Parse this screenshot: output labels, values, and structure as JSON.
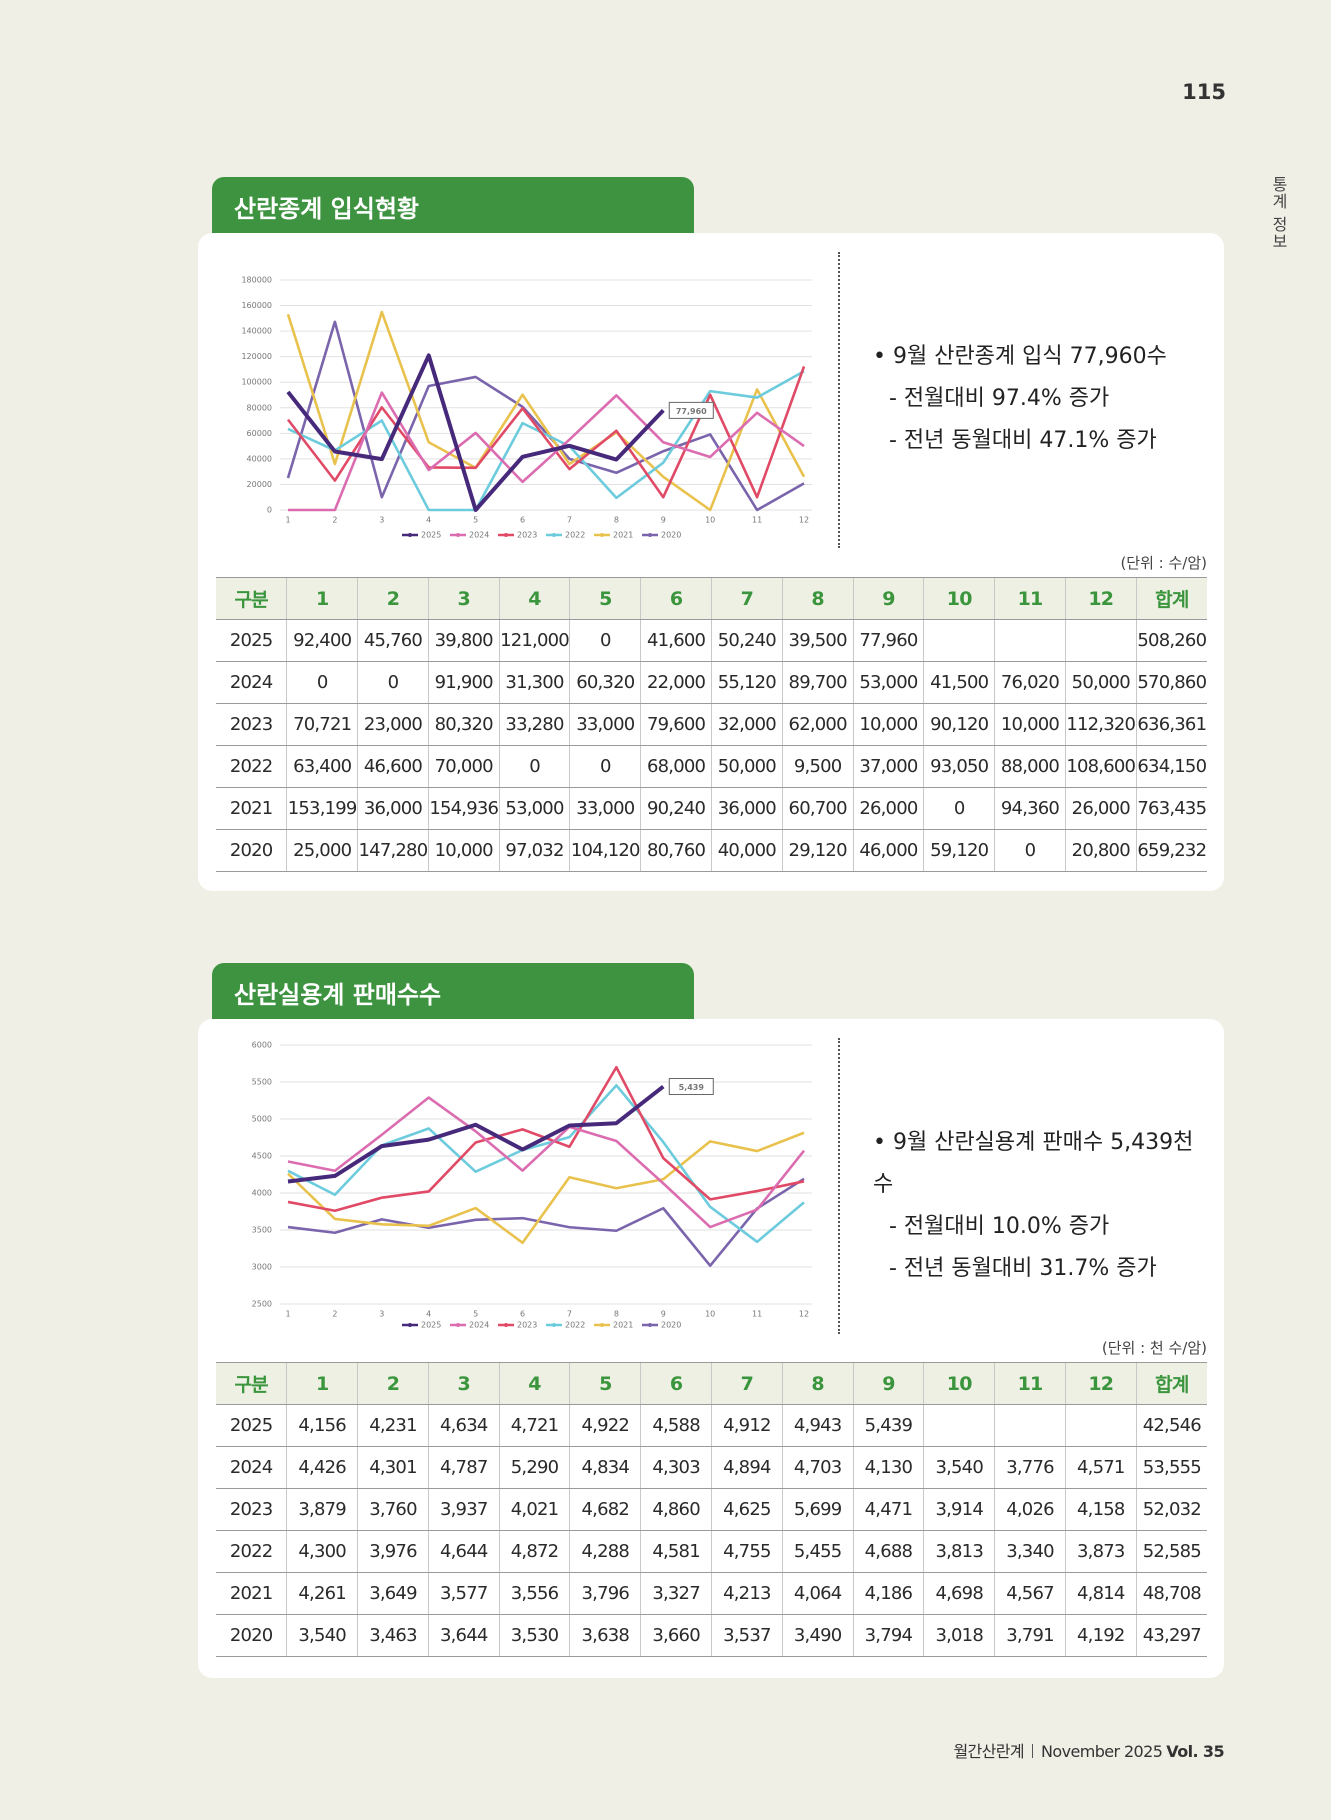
{
  "page_number": "115",
  "side_label": "통계 정보",
  "footer": {
    "magazine": "월간산란계",
    "issue": "November 2025",
    "volume": "Vol. 35"
  },
  "sections": [
    {
      "title": "산란종계 입식현황",
      "bullets": [
        "• 9월 산란종계 입식 77,960수",
        "- 전월대비 97.4% 증가",
        "- 전년 동월대비 47.1% 증가"
      ],
      "unit": "(단위 : 수/암)",
      "table": {
        "header": [
          "구분",
          "1",
          "2",
          "3",
          "4",
          "5",
          "6",
          "7",
          "8",
          "9",
          "10",
          "11",
          "12",
          "합계"
        ],
        "rows": [
          [
            "2025",
            "92,400",
            "45,760",
            "39,800",
            "121,000",
            "0",
            "41,600",
            "50,240",
            "39,500",
            "77,960",
            null,
            null,
            null,
            "508,260"
          ],
          [
            "2024",
            "0",
            "0",
            "91,900",
            "31,300",
            "60,320",
            "22,000",
            "55,120",
            "89,700",
            "53,000",
            "41,500",
            "76,020",
            "50,000",
            "570,860"
          ],
          [
            "2023",
            "70,721",
            "23,000",
            "80,320",
            "33,280",
            "33,000",
            "79,600",
            "32,000",
            "62,000",
            "10,000",
            "90,120",
            "10,000",
            "112,320",
            "636,361"
          ],
          [
            "2022",
            "63,400",
            "46,600",
            "70,000",
            "0",
            "0",
            "68,000",
            "50,000",
            "9,500",
            "37,000",
            "93,050",
            "88,000",
            "108,600",
            "634,150"
          ],
          [
            "2021",
            "153,199",
            "36,000",
            "154,936",
            "53,000",
            "33,000",
            "90,240",
            "36,000",
            "60,700",
            "26,000",
            "0",
            "94,360",
            "26,000",
            "763,435"
          ],
          [
            "2020",
            "25,000",
            "147,280",
            "10,000",
            "97,032",
            "104,120",
            "80,760",
            "40,000",
            "29,120",
            "46,000",
            "59,120",
            "0",
            "20,800",
            "659,232"
          ]
        ]
      }
    },
    {
      "title": "산란실용계 판매수수",
      "bullets": [
        "• 9월 산란실용계 판매수 5,439천수",
        "- 전월대비 10.0% 증가",
        "- 전년 동월대비 31.7% 증가"
      ],
      "unit": "(단위 : 천 수/암)",
      "table": {
        "header": [
          "구분",
          "1",
          "2",
          "3",
          "4",
          "5",
          "6",
          "7",
          "8",
          "9",
          "10",
          "11",
          "12",
          "합계"
        ],
        "rows": [
          [
            "2025",
            "4,156",
            "4,231",
            "4,634",
            "4,721",
            "4,922",
            "4,588",
            "4,912",
            "4,943",
            "5,439",
            null,
            null,
            null,
            "42,546"
          ],
          [
            "2024",
            "4,426",
            "4,301",
            "4,787",
            "5,290",
            "4,834",
            "4,303",
            "4,894",
            "4,703",
            "4,130",
            "3,540",
            "3,776",
            "4,571",
            "53,555"
          ],
          [
            "2023",
            "3,879",
            "3,760",
            "3,937",
            "4,021",
            "4,682",
            "4,860",
            "4,625",
            "5,699",
            "4,471",
            "3,914",
            "4,026",
            "4,158",
            "52,032"
          ],
          [
            "2022",
            "4,300",
            "3,976",
            "4,644",
            "4,872",
            "4,288",
            "4,581",
            "4,755",
            "5,455",
            "4,688",
            "3,813",
            "3,340",
            "3,873",
            "52,585"
          ],
          [
            "2021",
            "4,261",
            "3,649",
            "3,577",
            "3,556",
            "3,796",
            "3,327",
            "4,213",
            "4,064",
            "4,186",
            "4,698",
            "4,567",
            "4,814",
            "48,708"
          ],
          [
            "2020",
            "3,540",
            "3,463",
            "3,644",
            "3,530",
            "3,638",
            "3,660",
            "3,537",
            "3,490",
            "3,794",
            "3,018",
            "3,791",
            "4,192",
            "43,297"
          ]
        ]
      }
    }
  ],
  "chart_data": [
    {
      "type": "line",
      "categories": [
        "1",
        "2",
        "3",
        "4",
        "5",
        "6",
        "7",
        "8",
        "9",
        "10",
        "11",
        "12"
      ],
      "ylim": [
        0,
        180000
      ],
      "yticks": [
        0,
        20000,
        40000,
        60000,
        80000,
        100000,
        120000,
        140000,
        160000,
        180000
      ],
      "grid": true,
      "legend": "bottom",
      "series": [
        {
          "name": "2025",
          "color": "#46297a",
          "values": [
            92400,
            45760,
            39800,
            121000,
            0,
            41600,
            50240,
            39500,
            77960,
            null,
            null,
            null
          ],
          "value_labels": [
            null,
            null,
            null,
            null,
            null,
            null,
            null,
            null,
            "77,960",
            null,
            null,
            null
          ]
        },
        {
          "name": "2024",
          "color": "#dc6cb0",
          "values": [
            0,
            0,
            91900,
            31300,
            60320,
            22000,
            55120,
            89700,
            53000,
            41500,
            76020,
            50000
          ]
        },
        {
          "name": "2023",
          "color": "#e04a66",
          "values": [
            70721,
            23000,
            80320,
            33280,
            33000,
            79600,
            32000,
            62000,
            10000,
            90120,
            10000,
            112320
          ]
        },
        {
          "name": "2022",
          "color": "#6ccbdc",
          "values": [
            63400,
            46600,
            70000,
            0,
            0,
            68000,
            50000,
            9500,
            37000,
            93050,
            88000,
            108600
          ]
        },
        {
          "name": "2021",
          "color": "#e9c24e",
          "values": [
            153199,
            36000,
            154936,
            53000,
            33000,
            90240,
            36000,
            60700,
            26000,
            0,
            94360,
            26000
          ]
        },
        {
          "name": "2020",
          "color": "#7a64ac",
          "values": [
            25000,
            147280,
            10000,
            97032,
            104120,
            80760,
            40000,
            29120,
            46000,
            59120,
            0,
            20800
          ]
        }
      ]
    },
    {
      "type": "line",
      "categories": [
        "1",
        "2",
        "3",
        "4",
        "5",
        "6",
        "7",
        "8",
        "9",
        "10",
        "11",
        "12"
      ],
      "ylim": [
        2500,
        6000
      ],
      "yticks": [
        2500,
        3000,
        3500,
        4000,
        4500,
        5000,
        5500,
        6000
      ],
      "grid": true,
      "legend": "bottom",
      "series": [
        {
          "name": "2025",
          "color": "#46297a",
          "values": [
            4156,
            4231,
            4634,
            4721,
            4922,
            4588,
            4912,
            4943,
            5439,
            null,
            null,
            null
          ],
          "value_labels": [
            null,
            null,
            null,
            null,
            null,
            null,
            null,
            null,
            "5,439",
            null,
            null,
            null
          ]
        },
        {
          "name": "2024",
          "color": "#dc6cb0",
          "values": [
            4426,
            4301,
            4787,
            5290,
            4834,
            4303,
            4894,
            4703,
            4130,
            3540,
            3776,
            4571
          ]
        },
        {
          "name": "2023",
          "color": "#e04a66",
          "values": [
            3879,
            3760,
            3937,
            4021,
            4682,
            4860,
            4625,
            5699,
            4471,
            3914,
            4026,
            4158
          ]
        },
        {
          "name": "2022",
          "color": "#6ccbdc",
          "values": [
            4300,
            3976,
            4644,
            4872,
            4288,
            4581,
            4755,
            5455,
            4688,
            3813,
            3340,
            3873
          ]
        },
        {
          "name": "2021",
          "color": "#e9c24e",
          "values": [
            4261,
            3649,
            3577,
            3556,
            3796,
            3327,
            4213,
            4064,
            4186,
            4698,
            4567,
            4814
          ]
        },
        {
          "name": "2020",
          "color": "#7a64ac",
          "values": [
            3540,
            3463,
            3644,
            3530,
            3638,
            3660,
            3537,
            3490,
            3794,
            3018,
            3791,
            4192
          ]
        }
      ]
    }
  ]
}
